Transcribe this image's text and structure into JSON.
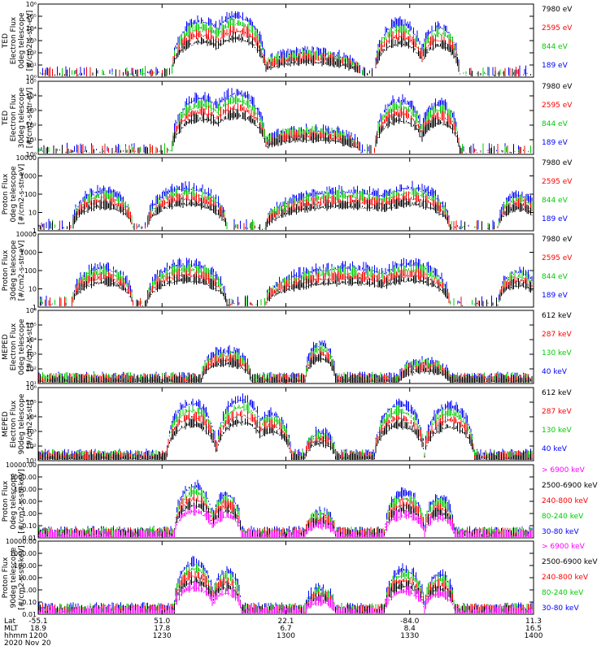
{
  "chart_data": [
    {
      "type": "scatter",
      "panel": 1,
      "ylabel": [
        "TED",
        "Electron Flux",
        "0deg telescope",
        "[#/cm2-s-str-eV]"
      ],
      "yscale": "log",
      "ylim": [
        1,
        1000000
      ],
      "ytick_labels": [
        "10⁰",
        "10¹",
        "10²",
        "10³",
        "10⁴",
        "10⁵",
        "10⁶"
      ],
      "series": [
        {
          "name": "7980 eV",
          "color": "#000000"
        },
        {
          "name": "2595 eV",
          "color": "#ff0000"
        },
        {
          "name": "844 eV",
          "color": "#00cc00"
        },
        {
          "name": "189 eV",
          "color": "#0000ff"
        }
      ]
    },
    {
      "type": "scatter",
      "panel": 2,
      "ylabel": [
        "TED",
        "Electron Flux",
        "30deg telescope",
        "[#/cm2-s-str-eV]"
      ],
      "yscale": "log",
      "ylim": [
        1,
        1000000
      ],
      "ytick_labels": [
        "10⁰",
        "10¹",
        "10²",
        "10³",
        "10⁴",
        "10⁵"
      ],
      "series": [
        {
          "name": "7980 eV",
          "color": "#000000"
        },
        {
          "name": "2595 eV",
          "color": "#ff0000"
        },
        {
          "name": "844 eV",
          "color": "#00cc00"
        },
        {
          "name": "189 eV",
          "color": "#0000ff"
        }
      ]
    },
    {
      "type": "scatter",
      "panel": 3,
      "ylabel": [
        "Proton Flux",
        "0deg telescope",
        "[#/cm2-s-str-eV]"
      ],
      "yscale": "log",
      "ylim": [
        1,
        10000
      ],
      "ytick_labels": [
        "1",
        "10",
        "100",
        "1000",
        "10000"
      ],
      "series": [
        {
          "name": "7980 eV",
          "color": "#000000"
        },
        {
          "name": "2595 eV",
          "color": "#ff0000"
        },
        {
          "name": "844 eV",
          "color": "#00cc00"
        },
        {
          "name": "189 eV",
          "color": "#0000ff"
        }
      ]
    },
    {
      "type": "scatter",
      "panel": 4,
      "ylabel": [
        "Proton Flux",
        "30deg telescope",
        "[#/cm2-s-str-eV]"
      ],
      "yscale": "log",
      "ylim": [
        1,
        10000
      ],
      "ytick_labels": [
        "1",
        "10",
        "100",
        "1000",
        "10000"
      ],
      "series": [
        {
          "name": "7980 eV",
          "color": "#000000"
        },
        {
          "name": "2595 eV",
          "color": "#ff0000"
        },
        {
          "name": "844 eV",
          "color": "#00cc00"
        },
        {
          "name": "189 eV",
          "color": "#0000ff"
        }
      ]
    },
    {
      "type": "scatter",
      "panel": 5,
      "ylabel": [
        "MEPED",
        "Electron Flux",
        "0deg telescope",
        "[#/cm2-s-str]"
      ],
      "yscale": "log",
      "ylim": [
        10,
        1000000
      ],
      "ytick_labels": [
        "10¹",
        "10²",
        "10³",
        "10⁴",
        "10⁵",
        "10⁶"
      ],
      "series": [
        {
          "name": "612 keV",
          "color": "#000000"
        },
        {
          "name": "287 keV",
          "color": "#ff0000"
        },
        {
          "name": "130 keV",
          "color": "#00cc00"
        },
        {
          "name": "40 keV",
          "color": "#0000ff"
        }
      ]
    },
    {
      "type": "scatter",
      "panel": 6,
      "ylabel": [
        "MEPED",
        "Electron Flux",
        "90deg telescope",
        "[#/cm2-s-str]"
      ],
      "yscale": "log",
      "ylim": [
        10,
        1000000
      ],
      "ytick_labels": [
        "10¹",
        "10²",
        "10³",
        "10⁴",
        "10⁵",
        "10⁶"
      ],
      "series": [
        {
          "name": "612 keV",
          "color": "#000000"
        },
        {
          "name": "287 keV",
          "color": "#ff0000"
        },
        {
          "name": "130 keV",
          "color": "#00cc00"
        },
        {
          "name": "40 keV",
          "color": "#0000ff"
        }
      ]
    },
    {
      "type": "scatter",
      "panel": 7,
      "ylabel": [
        "Proton Flux",
        "0deg telescope",
        "[#/cm2-s-str-keV]"
      ],
      "yscale": "log",
      "ylim": [
        0.01,
        10000
      ],
      "ytick_labels": [
        "0.01",
        "0.10",
        "1.00",
        "10.00",
        "100.00",
        "1000.00",
        "10000.00"
      ],
      "series": [
        {
          "name": "> 6900 keV",
          "color": "#ff00ff"
        },
        {
          "name": "2500-6900 keV",
          "color": "#000000"
        },
        {
          "name": "240-800 keV",
          "color": "#ff0000"
        },
        {
          "name": "80-240 keV",
          "color": "#00cc00"
        },
        {
          "name": "30-80 keV",
          "color": "#0000ff"
        }
      ]
    },
    {
      "type": "scatter",
      "panel": 8,
      "ylabel": [
        "Proton Flux",
        "90deg telescope",
        "[#/cm2-s-str-keV]"
      ],
      "yscale": "log",
      "ylim": [
        0.01,
        10000
      ],
      "ytick_labels": [
        "0.01",
        "0.10",
        "1.00",
        "10.00",
        "100.00",
        "1000.00",
        "10000.00"
      ],
      "series": [
        {
          "name": "> 6900 keV",
          "color": "#ff00ff"
        },
        {
          "name": "2500-6900 keV",
          "color": "#000000"
        },
        {
          "name": "240-800 keV",
          "color": "#ff0000"
        },
        {
          "name": "80-240 keV",
          "color": "#00cc00"
        },
        {
          "name": "30-80 keV",
          "color": "#0000ff"
        }
      ]
    }
  ],
  "x_axis": {
    "row_labels": [
      "Lat",
      "MLT",
      "hhmm",
      "2020 Nov 20"
    ],
    "ticks": [
      {
        "lat": "-55.1",
        "mlt": "18.9",
        "hhmm": "1200"
      },
      {
        "lat": "51.0",
        "mlt": "17.8",
        "hhmm": "1230"
      },
      {
        "lat": "22.1",
        "mlt": "6.7",
        "hhmm": "1300"
      },
      {
        "lat": "-84.0",
        "mlt": "8.4",
        "hhmm": "1330"
      },
      {
        "lat": "11.3",
        "mlt": "16.5",
        "hhmm": "1400"
      }
    ]
  }
}
